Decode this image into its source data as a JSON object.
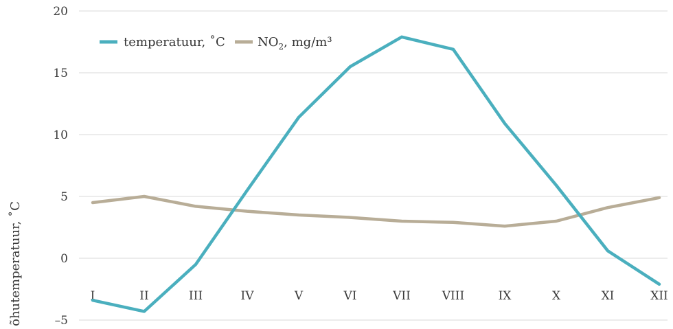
{
  "chart_data": {
    "type": "line",
    "categories": [
      "I",
      "II",
      "III",
      "IV",
      "V",
      "VI",
      "VII",
      "VIII",
      "IX",
      "X",
      "XI",
      "XII"
    ],
    "series": [
      {
        "name": "temperatuur, ˚C",
        "color": "#4aafbe",
        "values": [
          -3.4,
          -4.3,
          -0.5,
          5.5,
          11.4,
          15.5,
          17.9,
          16.9,
          10.9,
          5.9,
          0.6,
          -2.1
        ]
      },
      {
        "name_parts": [
          "NO",
          "2",
          ", mg/m³"
        ],
        "color": "#b8ad97",
        "values": [
          4.5,
          5.0,
          4.2,
          3.8,
          3.5,
          3.3,
          3.0,
          2.9,
          2.6,
          3.0,
          4.1,
          4.9
        ]
      }
    ],
    "ylabel": "õhutemperatuur, ˚C",
    "ylim": [
      -5,
      20
    ],
    "yticks": [
      -5,
      0,
      5,
      10,
      15,
      20
    ],
    "ytick_labels": [
      "–5",
      "0",
      "5",
      "10",
      "15",
      "20"
    ],
    "grid": true,
    "legend": "top-left"
  }
}
